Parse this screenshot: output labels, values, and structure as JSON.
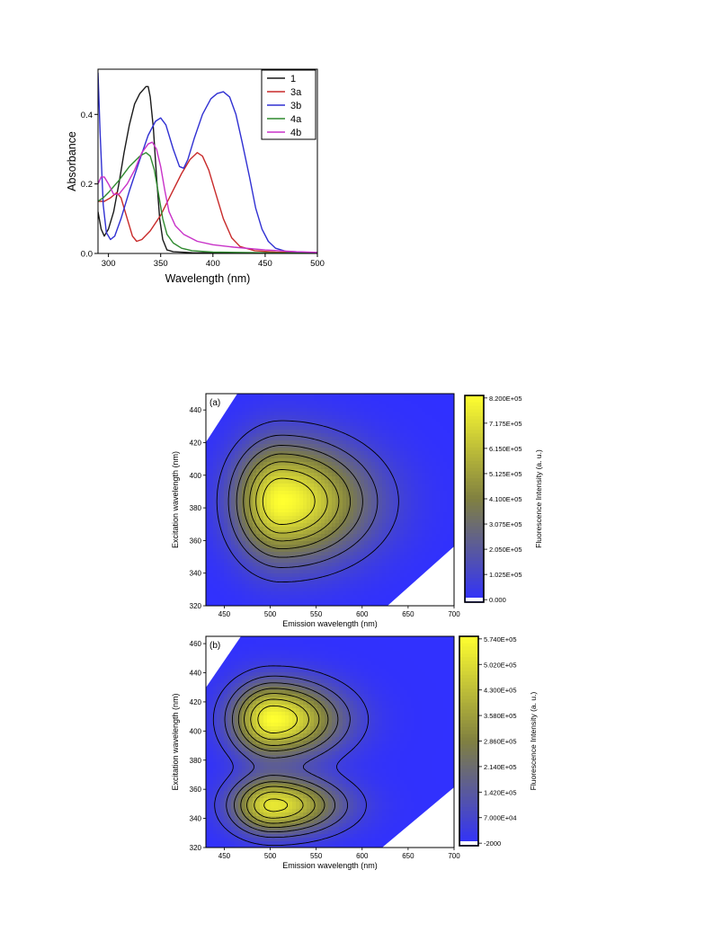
{
  "chart_data": [
    {
      "type": "line",
      "xlabel": "Wavelength (nm)",
      "ylabel": "Absorbance",
      "xlim": [
        290,
        500
      ],
      "ylim": [
        0,
        0.53
      ],
      "xticks": [
        "300",
        "350",
        "400",
        "450",
        "500"
      ],
      "xtick_values": [
        300,
        350,
        400,
        450,
        500
      ],
      "yticks": [
        "0.0",
        "0.2",
        "0.4"
      ],
      "ytick_values": [
        0,
        0.2,
        0.4
      ],
      "legend_position": "top-right",
      "series": [
        {
          "name": "1",
          "color": "#1a1a1a",
          "points": [
            [
              290,
              0.12
            ],
            [
              293,
              0.07
            ],
            [
              296,
              0.05
            ],
            [
              300,
              0.07
            ],
            [
              305,
              0.12
            ],
            [
              310,
              0.2
            ],
            [
              315,
              0.29
            ],
            [
              320,
              0.37
            ],
            [
              325,
              0.43
            ],
            [
              330,
              0.46
            ],
            [
              333,
              0.47
            ],
            [
              336,
              0.48
            ],
            [
              338,
              0.48
            ],
            [
              340,
              0.45
            ],
            [
              343,
              0.36
            ],
            [
              346,
              0.22
            ],
            [
              349,
              0.1
            ],
            [
              352,
              0.04
            ],
            [
              356,
              0.01
            ],
            [
              362,
              0.005
            ],
            [
              380,
              0.002
            ],
            [
              500,
              0.0
            ]
          ]
        },
        {
          "name": "3a",
          "color": "#c82a2a",
          "points": [
            [
              290,
              0.15
            ],
            [
              296,
              0.15
            ],
            [
              302,
              0.16
            ],
            [
              308,
              0.175
            ],
            [
              312,
              0.16
            ],
            [
              318,
              0.1
            ],
            [
              323,
              0.05
            ],
            [
              327,
              0.035
            ],
            [
              332,
              0.04
            ],
            [
              340,
              0.065
            ],
            [
              350,
              0.11
            ],
            [
              360,
              0.17
            ],
            [
              370,
              0.23
            ],
            [
              378,
              0.27
            ],
            [
              385,
              0.29
            ],
            [
              390,
              0.28
            ],
            [
              396,
              0.24
            ],
            [
              402,
              0.18
            ],
            [
              410,
              0.1
            ],
            [
              418,
              0.045
            ],
            [
              426,
              0.02
            ],
            [
              440,
              0.008
            ],
            [
              460,
              0.004
            ],
            [
              500,
              0.002
            ]
          ]
        },
        {
          "name": "3b",
          "color": "#3030d2",
          "points": [
            [
              290,
              0.52
            ],
            [
              292,
              0.35
            ],
            [
              295,
              0.14
            ],
            [
              298,
              0.06
            ],
            [
              302,
              0.04
            ],
            [
              306,
              0.05
            ],
            [
              312,
              0.1
            ],
            [
              320,
              0.18
            ],
            [
              330,
              0.27
            ],
            [
              338,
              0.34
            ],
            [
              345,
              0.38
            ],
            [
              350,
              0.39
            ],
            [
              355,
              0.37
            ],
            [
              362,
              0.3
            ],
            [
              368,
              0.25
            ],
            [
              372,
              0.245
            ],
            [
              376,
              0.27
            ],
            [
              382,
              0.33
            ],
            [
              390,
              0.4
            ],
            [
              398,
              0.445
            ],
            [
              404,
              0.46
            ],
            [
              410,
              0.465
            ],
            [
              416,
              0.45
            ],
            [
              422,
              0.4
            ],
            [
              428,
              0.32
            ],
            [
              435,
              0.22
            ],
            [
              441,
              0.13
            ],
            [
              447,
              0.07
            ],
            [
              453,
              0.035
            ],
            [
              460,
              0.015
            ],
            [
              470,
              0.006
            ],
            [
              500,
              0.002
            ]
          ]
        },
        {
          "name": "4a",
          "color": "#2f8a2f",
          "points": [
            [
              290,
              0.15
            ],
            [
              295,
              0.16
            ],
            [
              300,
              0.175
            ],
            [
              310,
              0.21
            ],
            [
              320,
              0.25
            ],
            [
              330,
              0.28
            ],
            [
              336,
              0.29
            ],
            [
              340,
              0.28
            ],
            [
              344,
              0.24
            ],
            [
              348,
              0.17
            ],
            [
              352,
              0.1
            ],
            [
              356,
              0.055
            ],
            [
              362,
              0.03
            ],
            [
              370,
              0.015
            ],
            [
              380,
              0.008
            ],
            [
              400,
              0.004
            ],
            [
              500,
              0.0
            ]
          ]
        },
        {
          "name": "4b",
          "color": "#c832c8",
          "points": [
            [
              290,
              0.2
            ],
            [
              293,
              0.22
            ],
            [
              296,
              0.22
            ],
            [
              300,
              0.2
            ],
            [
              305,
              0.17
            ],
            [
              310,
              0.17
            ],
            [
              318,
              0.2
            ],
            [
              325,
              0.24
            ],
            [
              332,
              0.29
            ],
            [
              338,
              0.315
            ],
            [
              342,
              0.32
            ],
            [
              346,
              0.3
            ],
            [
              350,
              0.25
            ],
            [
              354,
              0.18
            ],
            [
              358,
              0.12
            ],
            [
              364,
              0.08
            ],
            [
              372,
              0.055
            ],
            [
              385,
              0.035
            ],
            [
              400,
              0.025
            ],
            [
              420,
              0.018
            ],
            [
              450,
              0.01
            ],
            [
              480,
              0.005
            ],
            [
              500,
              0.003
            ]
          ]
        }
      ]
    },
    {
      "type": "heatmap",
      "panel_label": "(a)",
      "xlabel": "Emission wavelength (nm)",
      "ylabel": "Excitation wavelength (nm)",
      "colorbar_label": "Fluorescence Intensity (a. u.)",
      "xlim": [
        430,
        700
      ],
      "ylim": [
        320,
        450
      ],
      "xticks": [
        "450",
        "500",
        "550",
        "600",
        "650",
        "700"
      ],
      "xtick_values": [
        450,
        500,
        550,
        600,
        650,
        700
      ],
      "yticks": [
        "320",
        "340",
        "360",
        "380",
        "400",
        "420",
        "440"
      ],
      "ytick_values": [
        320,
        340,
        360,
        380,
        400,
        420,
        440
      ],
      "colorbar_ticks": [
        "8.200E+05",
        "7.175E+05",
        "6.150E+05",
        "5.125E+05",
        "4.100E+05",
        "3.075E+05",
        "2.050E+05",
        "1.025E+05",
        "0.000"
      ],
      "colorbar_range": [
        0,
        820000
      ],
      "colorscale": [
        "#3030ff",
        "#808040",
        "#ffff30"
      ],
      "peaks": [
        {
          "em": 512,
          "ex": 384,
          "value": 820000,
          "sigma_em_left": 34,
          "sigma_em_right": 62,
          "sigma_ex": 24
        }
      ],
      "contour_fractions": [
        0.12,
        0.24,
        0.36,
        0.48,
        0.6,
        0.72,
        0.84
      ],
      "missing_regions": [
        "top-left",
        "bottom-right"
      ]
    },
    {
      "type": "heatmap",
      "panel_label": "(b)",
      "xlabel": "Emission wavelength (nm)",
      "ylabel": "Excitation wavelength (nm)",
      "colorbar_label": "Fluorescence Intensity (a. u.)",
      "xlim": [
        430,
        700
      ],
      "ylim": [
        320,
        465
      ],
      "xticks": [
        "450",
        "500",
        "550",
        "600",
        "650",
        "700"
      ],
      "xtick_values": [
        450,
        500,
        550,
        600,
        650,
        700
      ],
      "yticks": [
        "320",
        "340",
        "360",
        "380",
        "400",
        "420",
        "440",
        "460"
      ],
      "ytick_values": [
        320,
        340,
        360,
        380,
        400,
        420,
        440,
        460
      ],
      "colorbar_ticks": [
        "5.740E+05",
        "5.020E+05",
        "4.300E+05",
        "3.580E+05",
        "2.860E+05",
        "2.140E+05",
        "1.420E+05",
        "7.000E+04",
        "-2000"
      ],
      "colorbar_range": [
        -2000,
        574000
      ],
      "colorscale": [
        "#3030ff",
        "#808040",
        "#ffff30"
      ],
      "peaks": [
        {
          "em": 503,
          "ex": 408,
          "value": 574000,
          "sigma_em_left": 30,
          "sigma_em_right": 48,
          "sigma_ex": 17
        },
        {
          "em": 503,
          "ex": 349,
          "value": 520000,
          "sigma_em_left": 30,
          "sigma_em_right": 48,
          "sigma_ex": 13
        }
      ],
      "contour_fractions": [
        0.1,
        0.22,
        0.34,
        0.46,
        0.58,
        0.72,
        0.86
      ],
      "missing_regions": [
        "top-left",
        "bottom-right"
      ]
    }
  ]
}
